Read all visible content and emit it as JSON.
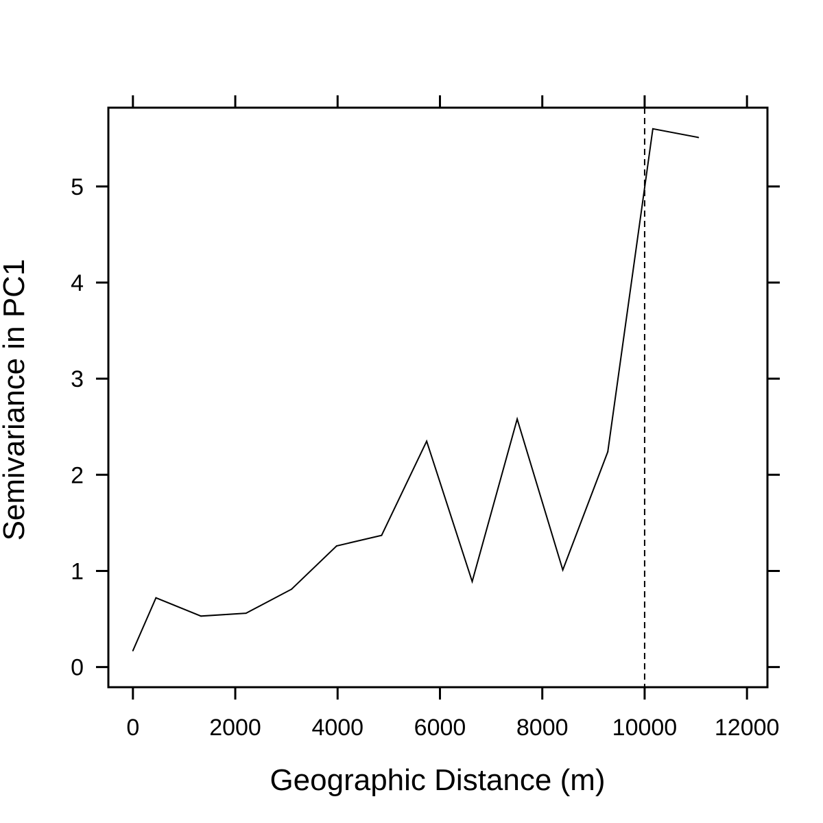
{
  "chart_data": {
    "type": "line",
    "title": "",
    "xlabel": "Geographic Distance (m)",
    "ylabel": "Semivariance in PC1",
    "xlim": [
      -480,
      12400
    ],
    "ylim": [
      -0.21,
      5.82
    ],
    "x_ticks": [
      0,
      2000,
      4000,
      6000,
      8000,
      10000,
      12000
    ],
    "y_ticks": [
      0,
      1,
      2,
      3,
      4,
      5
    ],
    "x_tick_labels": [
      "0",
      "2000",
      "4000",
      "6000",
      "8000",
      "10000",
      "12000"
    ],
    "y_tick_labels": [
      "0",
      "1",
      "2",
      "3",
      "4",
      "5"
    ],
    "grid": false,
    "reference_line": {
      "axis": "x",
      "value": 10000,
      "style": "dashed"
    },
    "series": [
      {
        "x": [
          0,
          450,
          1330,
          2210,
          3100,
          3980,
          4860,
          5740,
          6630,
          7510,
          8400,
          9280,
          10160,
          11050
        ],
        "y": [
          0.17,
          0.72,
          0.53,
          0.56,
          0.81,
          1.26,
          1.37,
          2.35,
          0.89,
          2.58,
          1.01,
          2.24,
          5.6,
          5.51
        ]
      }
    ]
  }
}
